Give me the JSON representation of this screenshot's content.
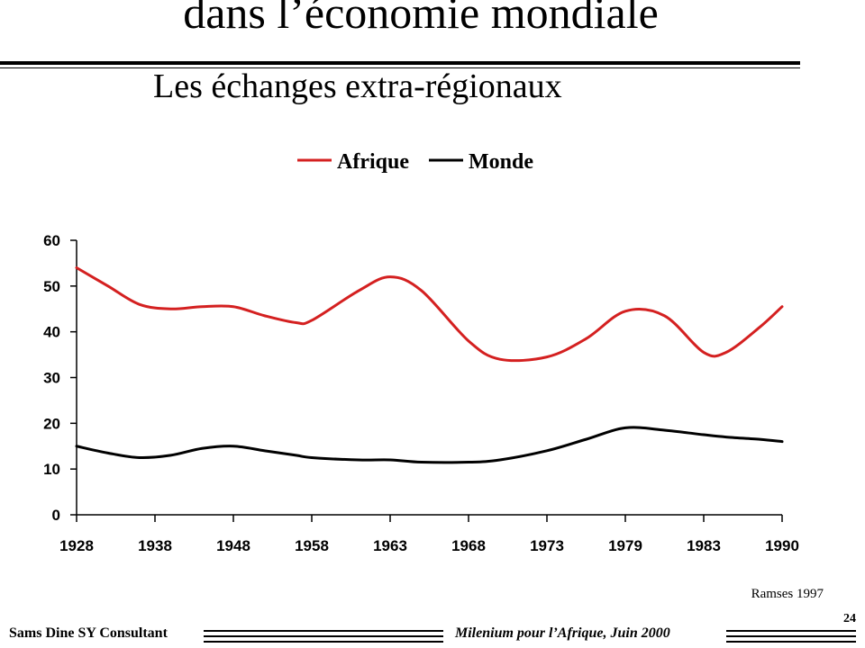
{
  "slide": {
    "title": "dans l’économie mondiale",
    "subtitle": "Les échanges extra-régionaux",
    "source": "Ramses 1997",
    "footer_left": "Sams Dine SY Consultant",
    "footer_right": "Milenium pour l’Afrique, Juin 2000",
    "page_number": "24"
  },
  "chart_data": {
    "type": "line",
    "categories": [
      "1928",
      "1938",
      "1948",
      "1958",
      "1963",
      "1968",
      "1973",
      "1979",
      "1983",
      "1990"
    ],
    "series": [
      {
        "name": "Afrique",
        "color": "#d42020",
        "x": [
          1928,
          1932,
          1936,
          1940,
          1944,
          1948,
          1952,
          1956,
          1958,
          1961,
          1963,
          1965,
          1968,
          1970,
          1973,
          1976,
          1979,
          1981,
          1983,
          1985,
          1988,
          1990
        ],
        "values": [
          54,
          50,
          46,
          45,
          45.5,
          45.5,
          43.5,
          42,
          42.5,
          49,
          52,
          49,
          38,
          34,
          34.5,
          38.5,
          44.5,
          43.5,
          35.5,
          35.5,
          41,
          45.5
        ]
      },
      {
        "name": "Monde",
        "color": "#000000",
        "x": [
          1928,
          1932,
          1936,
          1940,
          1944,
          1948,
          1952,
          1956,
          1958,
          1961,
          1963,
          1965,
          1968,
          1970,
          1973,
          1976,
          1979,
          1981,
          1983,
          1985,
          1988,
          1990
        ],
        "values": [
          15,
          13.5,
          12.5,
          13,
          14.5,
          15,
          14,
          13,
          12.5,
          12,
          12,
          11.5,
          11.5,
          12,
          14,
          16.5,
          19,
          18.5,
          17.5,
          17,
          16.5,
          16
        ]
      }
    ],
    "yticks": [
      0,
      10,
      20,
      30,
      40,
      50,
      60
    ],
    "ylim": [
      0,
      60
    ],
    "legend_position": "top-center",
    "grid": false
  }
}
